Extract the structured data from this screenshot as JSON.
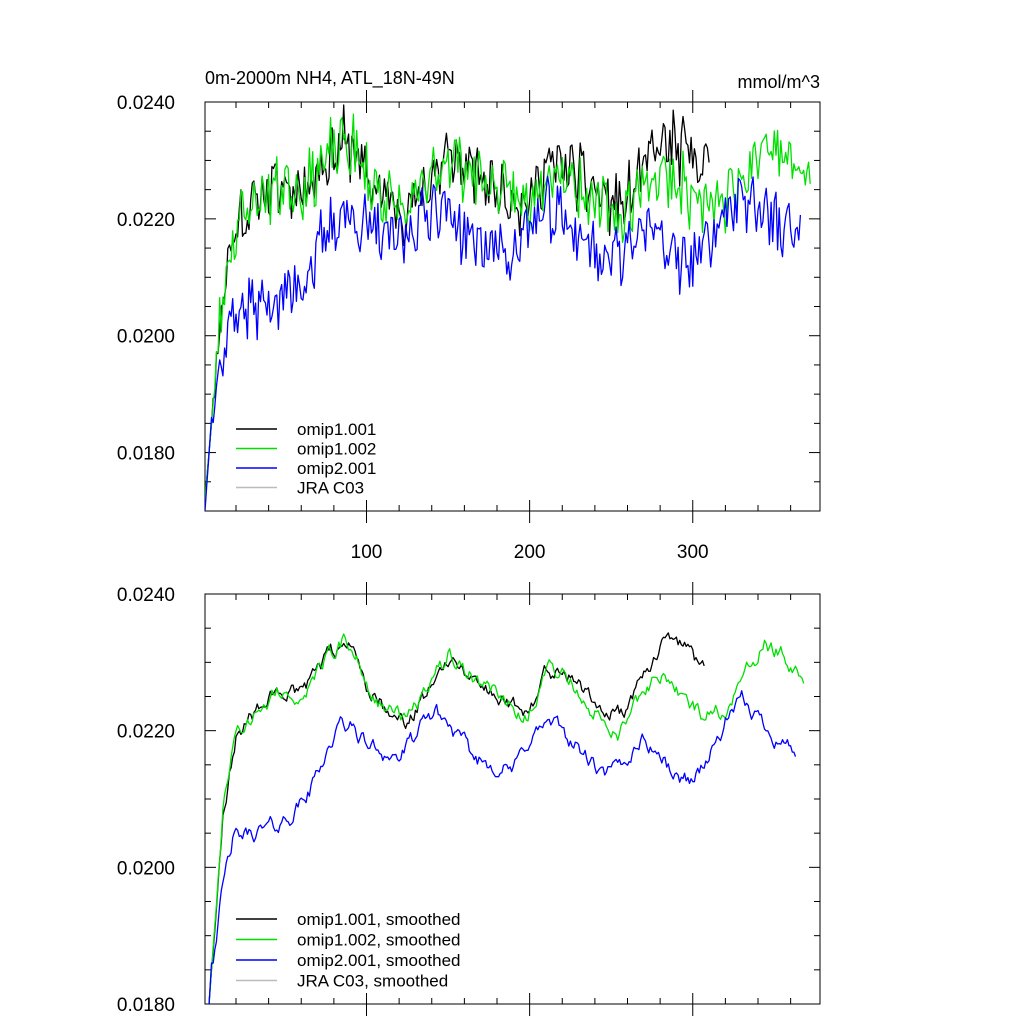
{
  "chart_data": [
    {
      "type": "line",
      "title": "0m-2000m NH4, ATL_18N-49N",
      "units": "mmol/m^3",
      "xlabel": "",
      "ylabel": "",
      "xlim": [
        1,
        378
      ],
      "ylim": [
        0.017,
        0.024
      ],
      "x_ticks": [
        100,
        200,
        300
      ],
      "x_tick_labels": [
        "100",
        "200",
        "300"
      ],
      "y_ticks": [
        0.018,
        0.02,
        0.022,
        0.024
      ],
      "y_tick_labels": [
        "0.0180",
        "0.0200",
        "0.0220",
        "0.0240"
      ],
      "legend_position": "bottom-left",
      "smoothed": false,
      "series": [
        {
          "name": "omip1.001",
          "color": "#000000",
          "x_range": [
            1,
            310
          ],
          "noise": 0.0005
        },
        {
          "name": "omip1.002",
          "color": "#00e000",
          "x_range": [
            1,
            372
          ],
          "noise": 0.0005
        },
        {
          "name": "omip2.001",
          "color": "#0000ff",
          "x_range": [
            1,
            366
          ],
          "noise": 0.0005
        },
        {
          "name": "JRA C03",
          "color": "#bbbbbb",
          "x_range": [],
          "noise": 0
        }
      ]
    },
    {
      "type": "line",
      "title": "",
      "units": "",
      "xlabel": "",
      "ylabel": "",
      "xlim": [
        1,
        378
      ],
      "ylim": [
        0.018,
        0.024
      ],
      "x_ticks": [
        100,
        200,
        300
      ],
      "x_tick_labels": [],
      "y_ticks": [
        0.018,
        0.02,
        0.022,
        0.024
      ],
      "y_tick_labels": [
        "0.0180",
        "0.0200",
        "0.0220",
        "0.0240"
      ],
      "legend_position": "bottom-left",
      "smoothed": true,
      "series": [
        {
          "name": "omip1.001, smoothed",
          "color": "#000000",
          "x_range": [
            1,
            307
          ],
          "noise": 0.00014
        },
        {
          "name": "omip1.002, smoothed",
          "color": "#00e000",
          "x_range": [
            1,
            368
          ],
          "noise": 0.00014
        },
        {
          "name": "omip2.001, smoothed",
          "color": "#0000ff",
          "x_range": [
            1,
            363
          ],
          "noise": 0.00014
        },
        {
          "name": "JRA C03, smoothed",
          "color": "#bbbbbb",
          "x_range": [],
          "noise": 0
        }
      ]
    }
  ],
  "anchors": {
    "omip1.002": [
      [
        1,
        0.0172
      ],
      [
        5,
        0.0185
      ],
      [
        12,
        0.0208
      ],
      [
        20,
        0.0219
      ],
      [
        35,
        0.0224
      ],
      [
        50,
        0.0226
      ],
      [
        60,
        0.0225
      ],
      [
        75,
        0.023
      ],
      [
        85,
        0.0233
      ],
      [
        92,
        0.0232
      ],
      [
        100,
        0.0227
      ],
      [
        110,
        0.0224
      ],
      [
        125,
        0.0221
      ],
      [
        140,
        0.0227
      ],
      [
        150,
        0.0231
      ],
      [
        160,
        0.0229
      ],
      [
        175,
        0.0226
      ],
      [
        190,
        0.0224
      ],
      [
        198,
        0.0222
      ],
      [
        210,
        0.0229
      ],
      [
        222,
        0.0228
      ],
      [
        235,
        0.0224
      ],
      [
        245,
        0.0222
      ],
      [
        255,
        0.022
      ],
      [
        270,
        0.0226
      ],
      [
        283,
        0.0228
      ],
      [
        295,
        0.0225
      ],
      [
        308,
        0.0222
      ],
      [
        320,
        0.0223
      ],
      [
        335,
        0.023
      ],
      [
        345,
        0.0233
      ],
      [
        355,
        0.0231
      ],
      [
        365,
        0.0228
      ],
      [
        372,
        0.0227
      ]
    ],
    "omip1.001": [
      [
        1,
        0.0172
      ],
      [
        5,
        0.0185
      ],
      [
        12,
        0.0208
      ],
      [
        20,
        0.0219
      ],
      [
        35,
        0.0224
      ],
      [
        50,
        0.0226
      ],
      [
        60,
        0.0225
      ],
      [
        75,
        0.023
      ],
      [
        85,
        0.0233
      ],
      [
        92,
        0.0232
      ],
      [
        100,
        0.0227
      ],
      [
        110,
        0.0224
      ],
      [
        125,
        0.0221
      ],
      [
        140,
        0.0227
      ],
      [
        150,
        0.0231
      ],
      [
        160,
        0.0229
      ],
      [
        175,
        0.0226
      ],
      [
        190,
        0.0224
      ],
      [
        198,
        0.0222
      ],
      [
        210,
        0.0229
      ],
      [
        222,
        0.0229
      ],
      [
        235,
        0.0226
      ],
      [
        250,
        0.0223
      ],
      [
        258,
        0.0222
      ],
      [
        270,
        0.0229
      ],
      [
        283,
        0.0233
      ],
      [
        290,
        0.0232
      ],
      [
        300,
        0.0231
      ],
      [
        310,
        0.0228
      ]
    ],
    "omip2.001": [
      [
        1,
        0.017
      ],
      [
        5,
        0.0186
      ],
      [
        12,
        0.0197
      ],
      [
        18,
        0.0204
      ],
      [
        30,
        0.0205
      ],
      [
        45,
        0.0206
      ],
      [
        55,
        0.0208
      ],
      [
        65,
        0.0211
      ],
      [
        75,
        0.0217
      ],
      [
        85,
        0.0221
      ],
      [
        93,
        0.022
      ],
      [
        100,
        0.0218
      ],
      [
        110,
        0.0217
      ],
      [
        120,
        0.0216
      ],
      [
        130,
        0.0219
      ],
      [
        142,
        0.0223
      ],
      [
        150,
        0.0221
      ],
      [
        165,
        0.0216
      ],
      [
        180,
        0.0215
      ],
      [
        190,
        0.0214
      ],
      [
        200,
        0.0219
      ],
      [
        210,
        0.0221
      ],
      [
        220,
        0.022
      ],
      [
        235,
        0.0216
      ],
      [
        245,
        0.0213
      ],
      [
        258,
        0.0215
      ],
      [
        268,
        0.0219
      ],
      [
        278,
        0.0217
      ],
      [
        290,
        0.0213
      ],
      [
        300,
        0.0213
      ],
      [
        312,
        0.0217
      ],
      [
        322,
        0.0222
      ],
      [
        330,
        0.0224
      ],
      [
        340,
        0.0222
      ],
      [
        352,
        0.0219
      ],
      [
        363,
        0.0217
      ],
      [
        366,
        0.0217
      ]
    ]
  }
}
